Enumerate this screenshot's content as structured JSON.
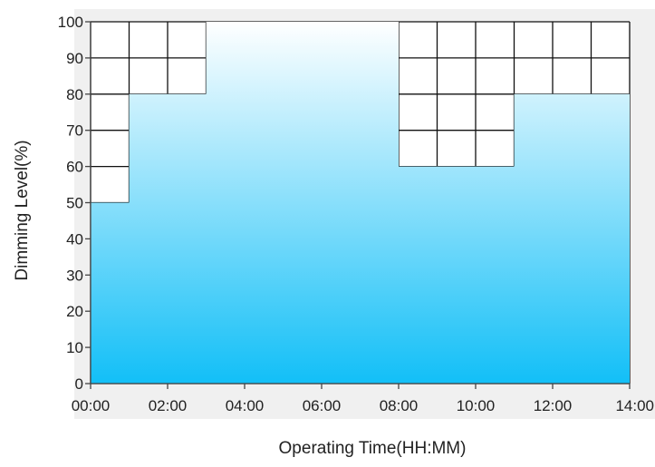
{
  "chart_data": {
    "type": "area",
    "step": true,
    "xlabel": "Operating Time(HH:MM)",
    "ylabel": "Dimming Level(%)",
    "x_unit": "hours",
    "xlim": [
      0,
      14
    ],
    "ylim": [
      0,
      100
    ],
    "x_ticks": [
      "00:00",
      "02:00",
      "04:00",
      "06:00",
      "08:00",
      "10:00",
      "12:00",
      "14:00"
    ],
    "y_ticks": [
      "0",
      "10",
      "20",
      "30",
      "40",
      "50",
      "60",
      "70",
      "80",
      "90",
      "100"
    ],
    "series": [
      {
        "x": [
          "00:00",
          "01:00",
          "03:00",
          "08:00",
          "11:00",
          "14:00"
        ],
        "values": [
          50,
          80,
          100,
          60,
          80,
          80
        ]
      }
    ],
    "grid": true,
    "colors": {
      "fill_top": "#ffffff",
      "fill_bottom": "#12bff7",
      "grid": "#111111",
      "plot_bg": "#f0f0f0"
    }
  }
}
